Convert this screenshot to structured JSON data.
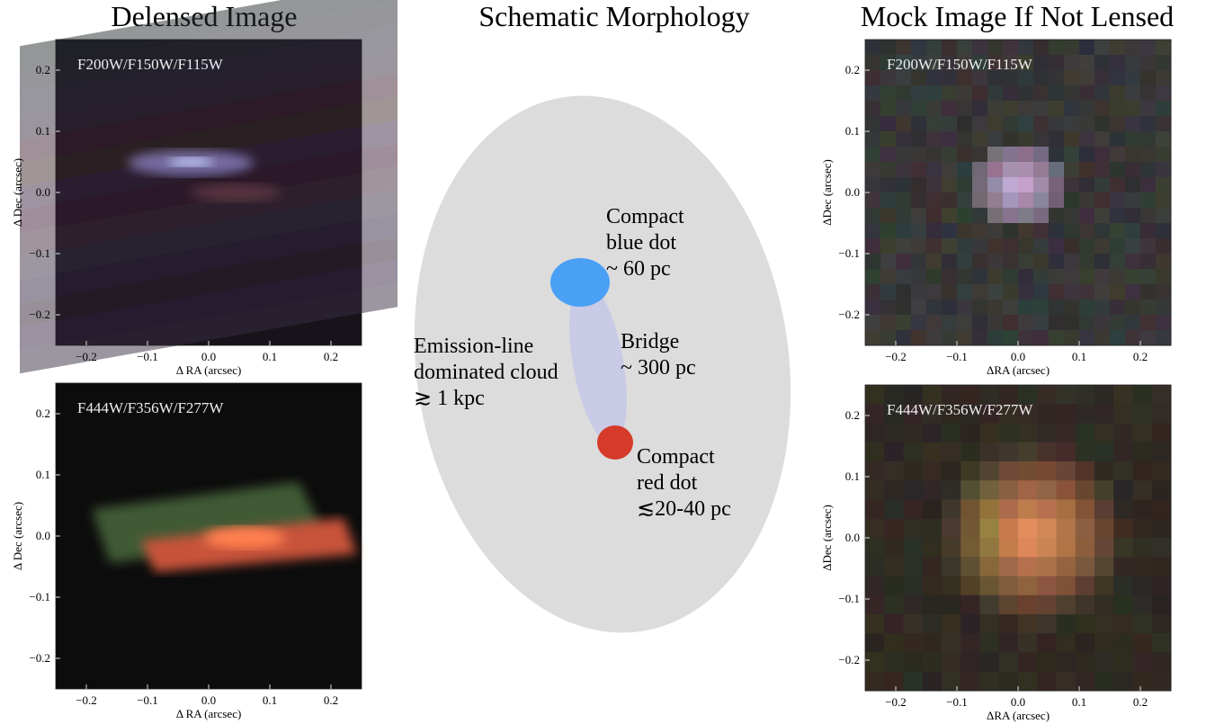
{
  "columns": [
    {
      "title": "Delensed Image"
    },
    {
      "title": "Schematic Morphology"
    },
    {
      "title": "Mock Image If Not Lensed"
    }
  ],
  "panels": [
    {
      "filters": "F200W/F150W/F115W",
      "xlabel": "Δ RA (arcsec)",
      "ylabel": "Δ Dec (arcsec)",
      "xlim": [
        -0.25,
        0.25
      ],
      "ylim": [
        -0.25,
        0.25
      ],
      "xticks": [
        {
          "value": -0.2,
          "label": "−0.2"
        },
        {
          "value": -0.1,
          "label": "−0.1"
        },
        {
          "value": 0,
          "label": "0.0"
        },
        0.1,
        0.2
      ],
      "yticks": [
        {
          "value": -0.2,
          "label": "−0.2"
        },
        {
          "value": -0.1,
          "label": "−0.1"
        },
        {
          "value": 0,
          "label": "0.0"
        },
        0.1,
        0.2
      ]
    },
    {
      "filters": "F444W/F356W/F277W",
      "xlabel": "Δ RA (arcsec)",
      "ylabel": "Δ Dec (arcsec)",
      "xlim": [
        -0.25,
        0.25
      ],
      "ylim": [
        -0.25,
        0.25
      ],
      "xticks": [
        {
          "value": -0.2,
          "label": "−0.2"
        },
        {
          "value": -0.1,
          "label": "−0.1"
        },
        {
          "value": 0,
          "label": "0.0"
        },
        0.1,
        0.2
      ],
      "yticks": [
        {
          "value": -0.2,
          "label": "−0.2"
        },
        {
          "value": -0.1,
          "label": "−0.1"
        },
        {
          "value": 0,
          "label": "0.0"
        },
        0.1,
        0.2
      ]
    },
    {
      "filters": "F200W/F150W/F115W",
      "xlabel": "ΔRA (arcsec)",
      "ylabel": "ΔDec (arcsec)",
      "xlim": [
        -0.25,
        0.25
      ],
      "ylim": [
        -0.25,
        0.25
      ],
      "xticks": [
        {
          "value": -0.2,
          "label": "−0.2"
        },
        {
          "value": -0.1,
          "label": "−0.1"
        },
        {
          "value": 0,
          "label": "0.0"
        },
        0.1,
        0.2
      ],
      "yticks": [
        {
          "value": -0.2,
          "label": "−0.2"
        },
        {
          "value": -0.1,
          "label": "−0.1"
        },
        {
          "value": 0,
          "label": "0.0"
        },
        0.1,
        0.2
      ]
    },
    {
      "filters": "F444W/F356W/F277W",
      "xlabel": "ΔRA (arcsec)",
      "ylabel": "ΔDec (arcsec)",
      "xlim": [
        -0.25,
        0.25
      ],
      "ylim": [
        -0.25,
        0.25
      ],
      "xticks": [
        {
          "value": -0.2,
          "label": "−0.2"
        },
        {
          "value": -0.1,
          "label": "−0.1"
        },
        {
          "value": 0,
          "label": "0.0"
        },
        0.1,
        0.2
      ],
      "yticks": [
        {
          "value": -0.2,
          "label": "−0.2"
        },
        {
          "value": -0.1,
          "label": "−0.1"
        },
        {
          "value": 0,
          "label": "0.0"
        },
        0.1,
        0.2
      ]
    }
  ],
  "schematic": {
    "blue_dot": [
      "Compact",
      "blue dot",
      "~ 60 pc"
    ],
    "bridge": [
      "Bridge",
      "~ 300 pc"
    ],
    "cloud": [
      "Emission-line",
      "dominated cloud",
      "≳ 1 kpc"
    ],
    "red_dot": [
      "Compact",
      "red dot",
      "≲20-40 pc"
    ]
  }
}
